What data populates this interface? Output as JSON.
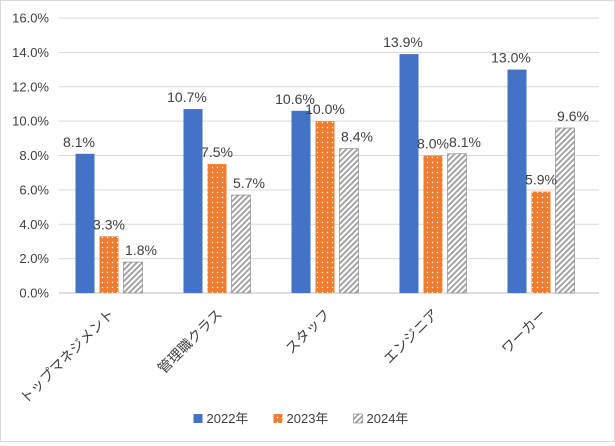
{
  "chart_data": {
    "type": "bar",
    "title": "",
    "xlabel": "",
    "ylabel": "",
    "categories": [
      "トップマネジメント",
      "管理職クラス",
      "スタッフ",
      "エンジニア",
      "ワーカー"
    ],
    "series": [
      {
        "name": "2022年",
        "values": [
          8.1,
          10.7,
          10.6,
          13.9,
          13.0
        ],
        "labels": [
          "8.1%",
          "10.7%",
          "10.6%",
          "13.9%",
          "13.0%"
        ],
        "color": "#4472c4",
        "pattern": "solid"
      },
      {
        "name": "2023年",
        "values": [
          3.3,
          7.5,
          10.0,
          8.0,
          5.9
        ],
        "labels": [
          "3.3%",
          "7.5%",
          "10.0%",
          "8.0%",
          "5.9%"
        ],
        "color": "#ed7d31",
        "pattern": "dotted"
      },
      {
        "name": "2024年",
        "values": [
          1.8,
          5.7,
          8.4,
          8.1,
          9.6
        ],
        "labels": [
          "1.8%",
          "5.7%",
          "8.4%",
          "8.1%",
          "9.6%"
        ],
        "color": "#a5a5a5",
        "pattern": "hatched"
      }
    ],
    "ylim": [
      0,
      16
    ],
    "yticks": [
      "0.0%",
      "2.0%",
      "4.0%",
      "6.0%",
      "8.0%",
      "10.0%",
      "12.0%",
      "14.0%",
      "16.0%"
    ],
    "grid": true,
    "legend_position": "bottom"
  }
}
